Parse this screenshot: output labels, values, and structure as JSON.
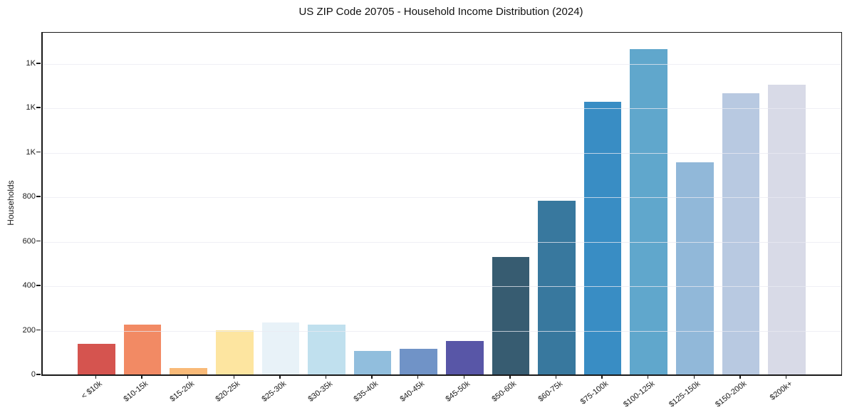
{
  "chart_data": {
    "type": "bar",
    "title": "US ZIP Code 20705 - Household Income Distribution (2024)",
    "xlabel": "",
    "ylabel": "Households",
    "categories": [
      "< $10k",
      "$10-15k",
      "$15-20k",
      "$20-25k",
      "$25-30k",
      "$30-35k",
      "$35-40k",
      "$40-45k",
      "$45-50k",
      "$50-60k",
      "$60-75k",
      "$75-100k",
      "$100-125k",
      "$125-150k",
      "$150-200k",
      "$200k+"
    ],
    "values": [
      142,
      227,
      31,
      203,
      238,
      229,
      110,
      118,
      155,
      531,
      783,
      1231,
      1466,
      956,
      1269,
      1306
    ],
    "bar_colors": [
      "#d5544f",
      "#f28a64",
      "#f9ba78",
      "#fde5a0",
      "#e8f2f8",
      "#c0e0ee",
      "#91bedd",
      "#7093c7",
      "#5856a7",
      "#375c71",
      "#38789e",
      "#398dc4",
      "#60a7cc",
      "#91b8d9",
      "#b8c9e1",
      "#d8dae7"
    ],
    "ylim": [
      0,
      1540
    ],
    "yticks": {
      "values": [
        0,
        200,
        400,
        600,
        800,
        1000,
        1200,
        1400
      ],
      "labels": [
        "0",
        "200",
        "400",
        "600",
        "800",
        "1K",
        "1K",
        "1K"
      ]
    },
    "grid": "horizontal",
    "legend": "none"
  },
  "colors": {
    "background": "#ffffff",
    "grid": "#e9e9f2",
    "axis": "#1a1a1a",
    "text": "#1a1a1a"
  }
}
